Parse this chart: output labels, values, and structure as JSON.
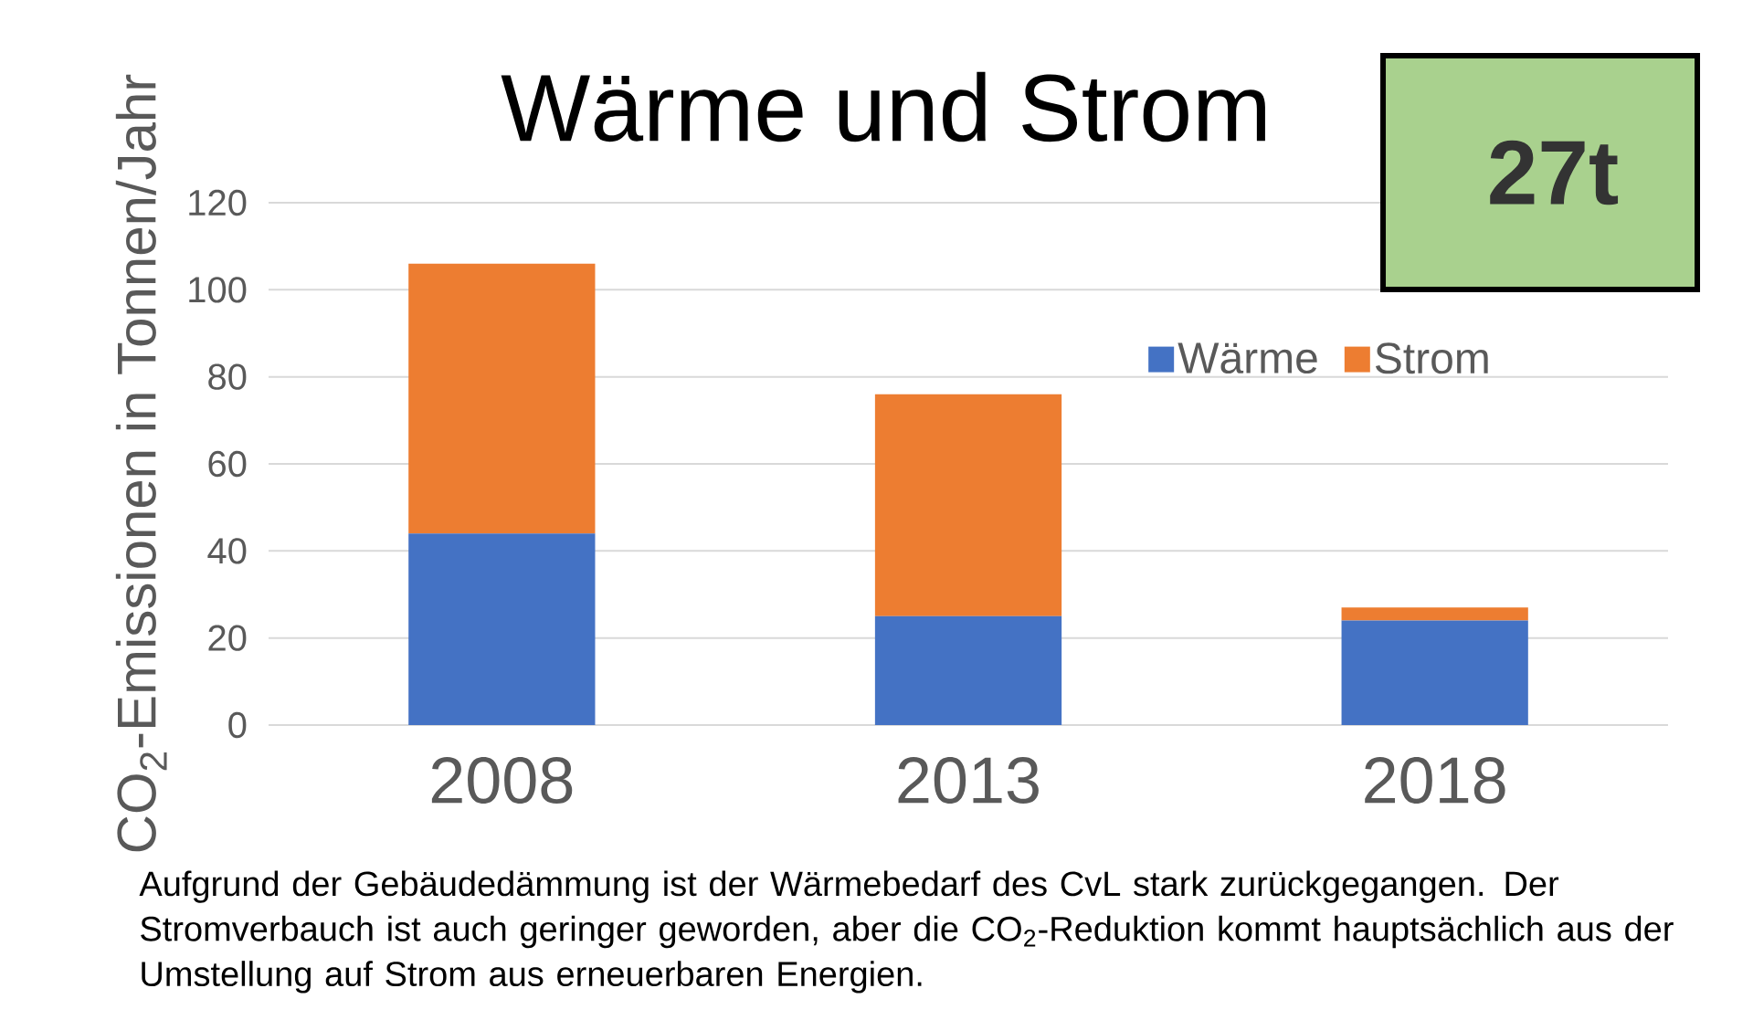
{
  "chart_data": {
    "type": "bar",
    "stacked": true,
    "title": "Wärme und Strom",
    "ylabel": "CO$_{2}$-Emissionen in Tonnen/Jahr",
    "categories": [
      "2008",
      "2013",
      "2018"
    ],
    "series": [
      {
        "name": "Wärme",
        "color": "#4472c4",
        "values": [
          44,
          25,
          24
        ]
      },
      {
        "name": "Strom",
        "color": "#ed7d31",
        "values": [
          62,
          51,
          3
        ]
      }
    ],
    "ylim": [
      0,
      120
    ],
    "yticks": [
      0,
      20,
      40,
      60,
      80,
      100,
      120
    ],
    "grid": "y",
    "legend": "top right",
    "annotations": [
      "27t",
      "Aufgrund der Gebäudedämmung ist der Wärmebedarf des CvL stark zurückgegangen. Der Stromverbauch ist auch geringer geworden, aber die CO$_{2}$-Reduktion kommt hauptsächlich aus der Umstellung auf Strom aus erneuerbaren Energien."
    ]
  }
}
